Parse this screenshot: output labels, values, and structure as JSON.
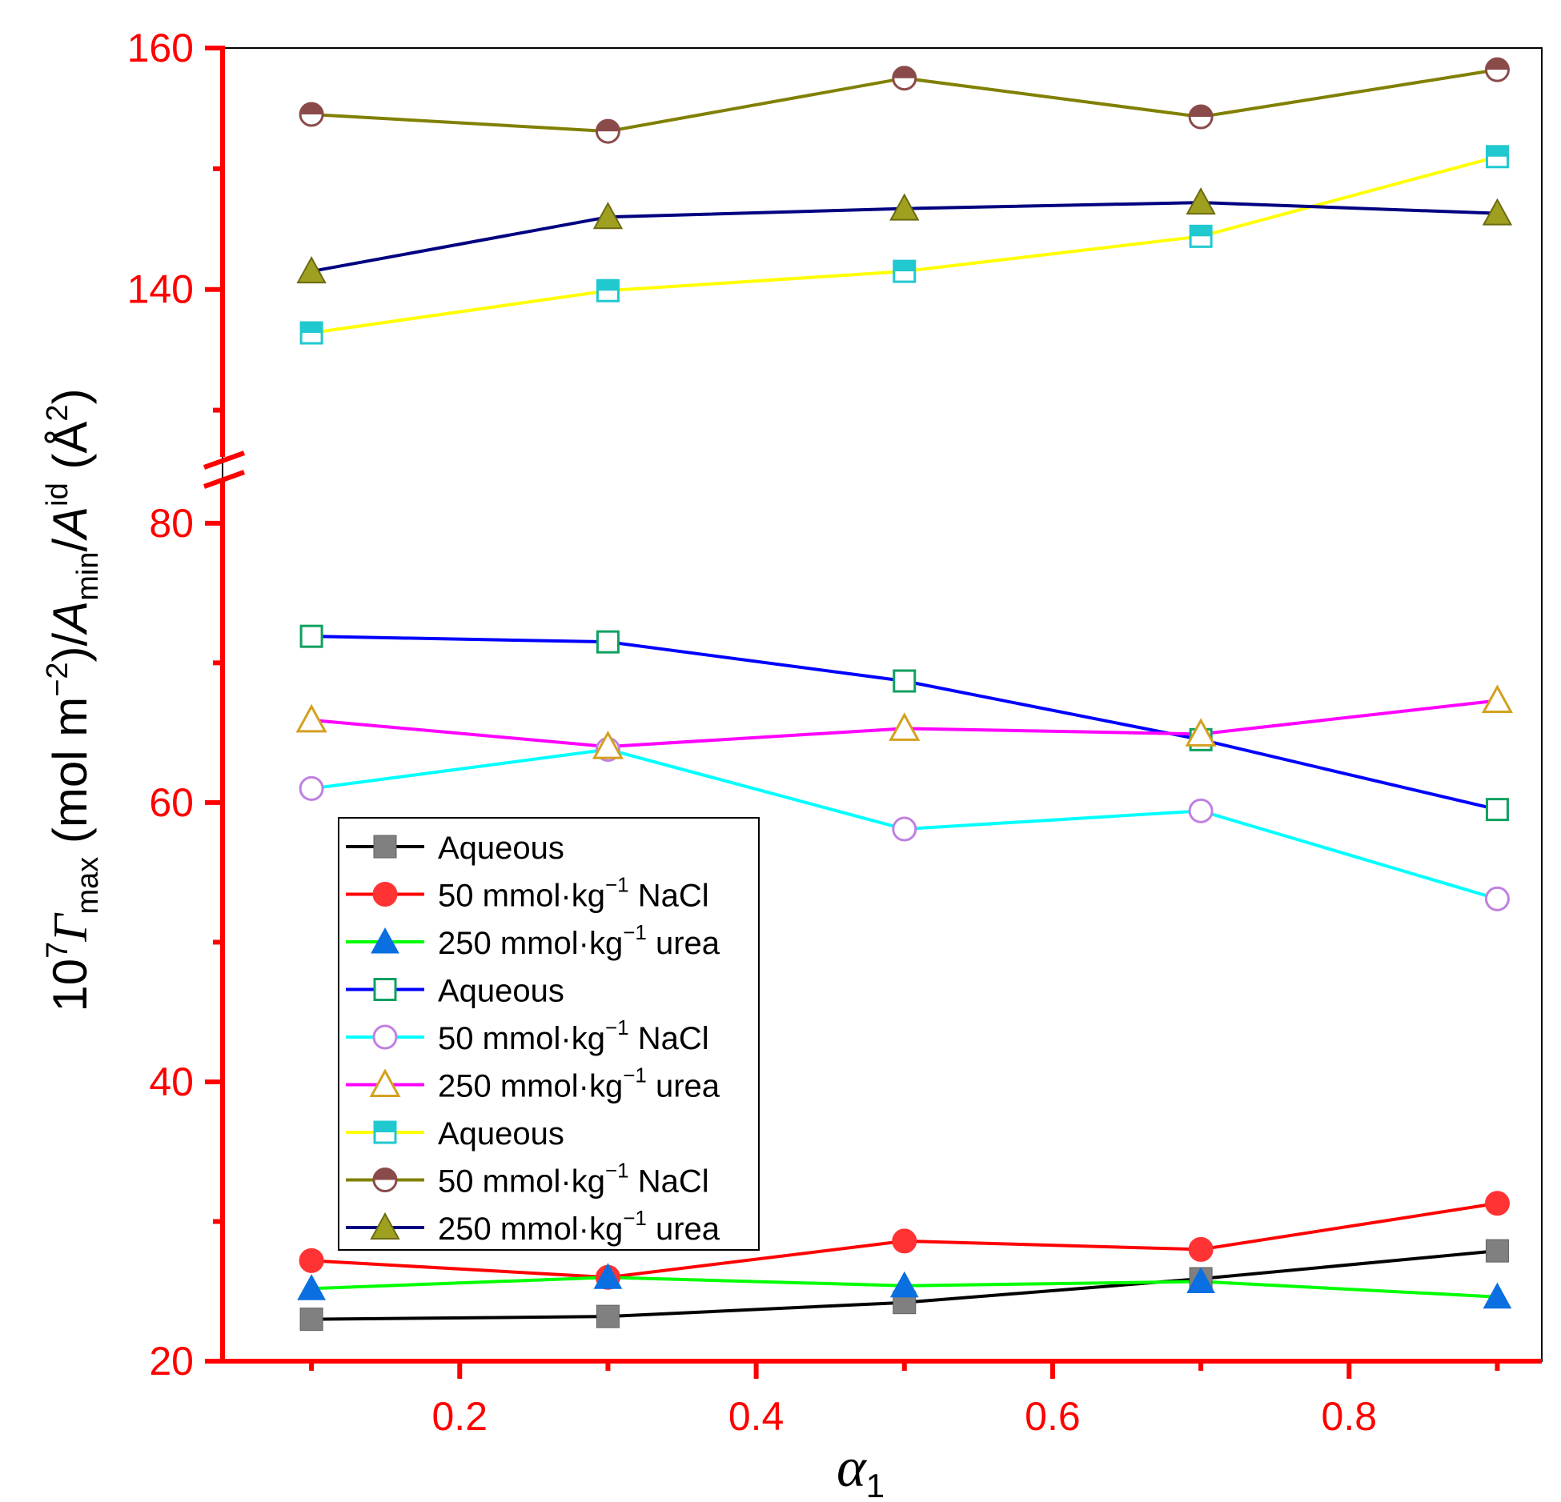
{
  "chart_data": {
    "type": "line",
    "x": [
      0.1,
      0.3,
      0.5,
      0.7,
      0.9
    ],
    "xlim": [
      0.04,
      0.93
    ],
    "x_ticks": [
      "0.2",
      "0.4",
      "0.6",
      "0.8"
    ],
    "x_tick_values": [
      0.2,
      0.4,
      0.6,
      0.8
    ],
    "xlabel": {
      "main": "α",
      "sub": "1"
    },
    "ylabel": {
      "pre": "10",
      "sup1": "7",
      "gamma": "Γ",
      "sub1": "max",
      "mid1": " (mol m",
      "sup2": "−2",
      "mid2": ")/",
      "a1": "A",
      "sub2": "min",
      "slash": "/",
      "a2": "A",
      "sup3": "id",
      "mid3": " (Å",
      "sup4": "2",
      "end": ")"
    },
    "y_axis": {
      "broken": true,
      "lower_range": [
        20,
        84
      ],
      "upper_range": [
        125,
        160
      ],
      "lower_ticks": [
        "20",
        "40",
        "60",
        "80"
      ],
      "lower_tick_values": [
        20,
        40,
        60,
        80
      ],
      "upper_ticks": [
        "140",
        "160"
      ],
      "upper_tick_values": [
        140,
        160
      ]
    },
    "axis_color": "#ff0000",
    "grid": false,
    "legend_position": "center-left",
    "series": [
      {
        "name": "Aqueous",
        "group": "Γmax",
        "line": "#000000",
        "marker": "square",
        "fill": "#808080",
        "stroke": "#606060",
        "values": [
          23.0,
          23.2,
          24.2,
          25.9,
          27.9
        ]
      },
      {
        "name": "50 mmol·kg⁻¹ NaCl",
        "group": "Γmax",
        "line": "#ff0000",
        "marker": "circle",
        "fill": "#ff3333",
        "stroke": "#ff3333",
        "values": [
          27.2,
          26.0,
          28.6,
          28.0,
          31.3
        ]
      },
      {
        "name": "250 mmol·kg⁻¹ urea",
        "group": "Γmax",
        "line": "#00ff00",
        "marker": "triangle",
        "fill": "#0a6fe0",
        "stroke": "#0a6fe0",
        "values": [
          25.2,
          26.0,
          25.4,
          25.7,
          24.6
        ]
      },
      {
        "name": "Aqueous",
        "group": "Amin",
        "line": "#0000ff",
        "marker": "square-open",
        "fill": "#ffffff",
        "stroke": "#10a060",
        "values": [
          71.9,
          71.5,
          68.7,
          64.5,
          59.5
        ]
      },
      {
        "name": "50 mmol·kg⁻¹ NaCl",
        "group": "Amin",
        "line": "#00ffff",
        "marker": "circle-open",
        "fill": "#ffffff",
        "stroke": "#c080e0",
        "values": [
          61.0,
          63.8,
          58.1,
          59.4,
          53.1
        ]
      },
      {
        "name": "250 mmol·kg⁻¹ urea",
        "group": "Amin",
        "line": "#ff00ff",
        "marker": "triangle-open",
        "fill": "#ffffff",
        "stroke": "#d4a020",
        "values": [
          65.9,
          64.0,
          65.3,
          64.9,
          67.3
        ]
      },
      {
        "name": "Aqueous",
        "group": "Aid",
        "line": "#ffff00",
        "marker": "square-half",
        "fill": "#20c8d0",
        "stroke": "#20c8d0",
        "values": [
          136.4,
          139.9,
          141.5,
          144.4,
          151.0
        ]
      },
      {
        "name": "50 mmol·kg⁻¹ NaCl",
        "group": "Aid",
        "line": "#808000",
        "marker": "circle-half",
        "fill": "#8b4a4a",
        "stroke": "#8b4a4a",
        "values": [
          154.5,
          153.1,
          157.5,
          154.3,
          158.2
        ]
      },
      {
        "name": "250 mmol·kg⁻¹ urea",
        "group": "Aid",
        "line": "#000080",
        "marker": "triangle-olive",
        "fill": "#a0a020",
        "stroke": "#6b6b10",
        "values": [
          141.5,
          146.0,
          146.7,
          147.2,
          146.3
        ]
      }
    ],
    "legend": [
      {
        "base": "Aqueous",
        "sup": "",
        "tail": ""
      },
      {
        "base": "50 mmol·kg",
        "sup": "−1",
        "tail": " NaCl"
      },
      {
        "base": "250 mmol·kg",
        "sup": "−1",
        "tail": " urea"
      },
      {
        "base": "Aqueous",
        "sup": "",
        "tail": ""
      },
      {
        "base": "50 mmol·kg",
        "sup": "−1",
        "tail": " NaCl"
      },
      {
        "base": "250 mmol·kg",
        "sup": "−1",
        "tail": " urea"
      },
      {
        "base": "Aqueous",
        "sup": "",
        "tail": ""
      },
      {
        "base": "50 mmol·kg",
        "sup": "−1",
        "tail": " NaCl"
      },
      {
        "base": "250 mmol·kg",
        "sup": "−1",
        "tail": " urea"
      }
    ]
  }
}
